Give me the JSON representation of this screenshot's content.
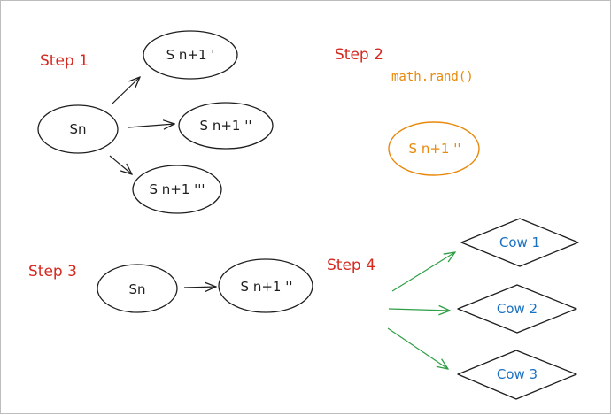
{
  "colors": {
    "step": "#d6281f",
    "ink": "#1e1e1e",
    "orange": "#e8890c",
    "green": "#2f9e44",
    "blue": "#1971c2"
  },
  "step1": {
    "label": "Step 1",
    "source": "Sn",
    "targets": [
      "S n+1 '",
      "S n+1 ''",
      "S n+1 '''"
    ]
  },
  "step2": {
    "label": "Step 2",
    "code": "math.rand()",
    "selected": "S n+1 ''"
  },
  "step3": {
    "label": "Step 3",
    "source": "Sn",
    "target": "S n+1 ''"
  },
  "step4": {
    "label": "Step 4",
    "cows": [
      "Cow 1",
      "Cow 2",
      "Cow 3"
    ]
  }
}
